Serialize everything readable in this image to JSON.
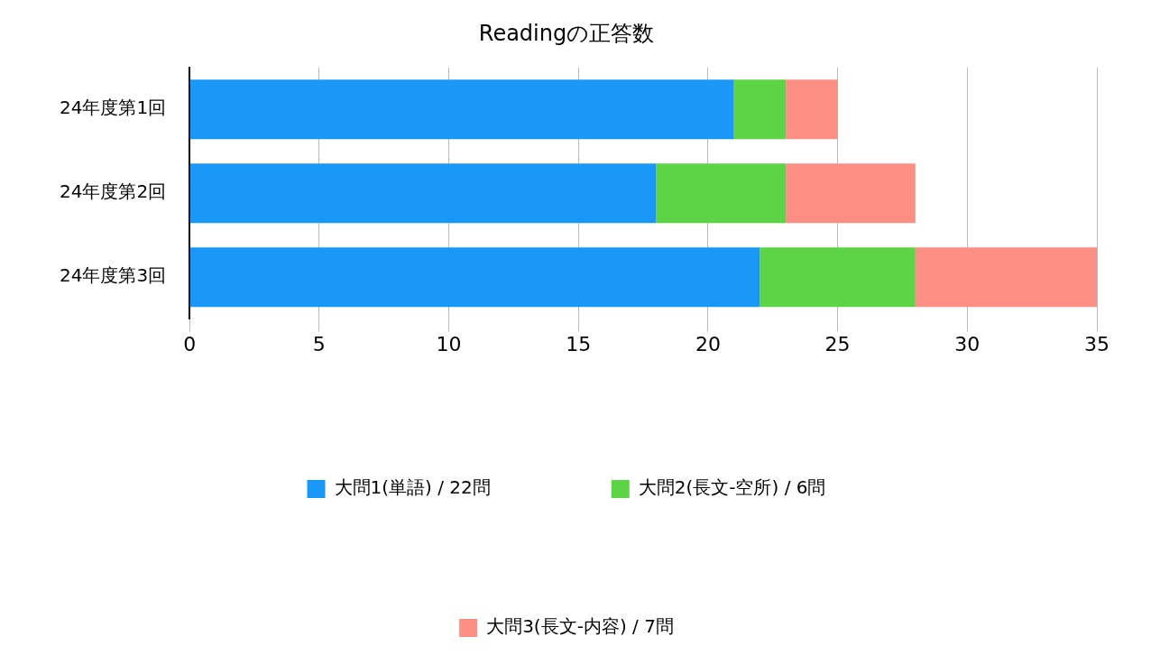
{
  "chart_data": {
    "type": "bar",
    "orientation": "horizontal",
    "stacked": true,
    "title": "Readingの正答数",
    "categories": [
      "24年度第1回",
      "24年度第2回",
      "24年度第3回"
    ],
    "series": [
      {
        "name": "大問1(単語) / 22問",
        "color": "#1a98f8",
        "values": [
          21,
          18,
          22
        ]
      },
      {
        "name": "大問2(長文-空所) / 6問",
        "color": "#5dd346",
        "values": [
          2,
          5,
          6
        ]
      },
      {
        "name": "大問3(長文-内容) / 7問",
        "color": "#fc8f83",
        "values": [
          2,
          5,
          7
        ]
      }
    ],
    "xlim": [
      0,
      35
    ],
    "xticks": [
      0,
      5,
      10,
      15,
      20,
      25,
      30,
      35
    ],
    "grid": "x",
    "legend": "bottom"
  }
}
